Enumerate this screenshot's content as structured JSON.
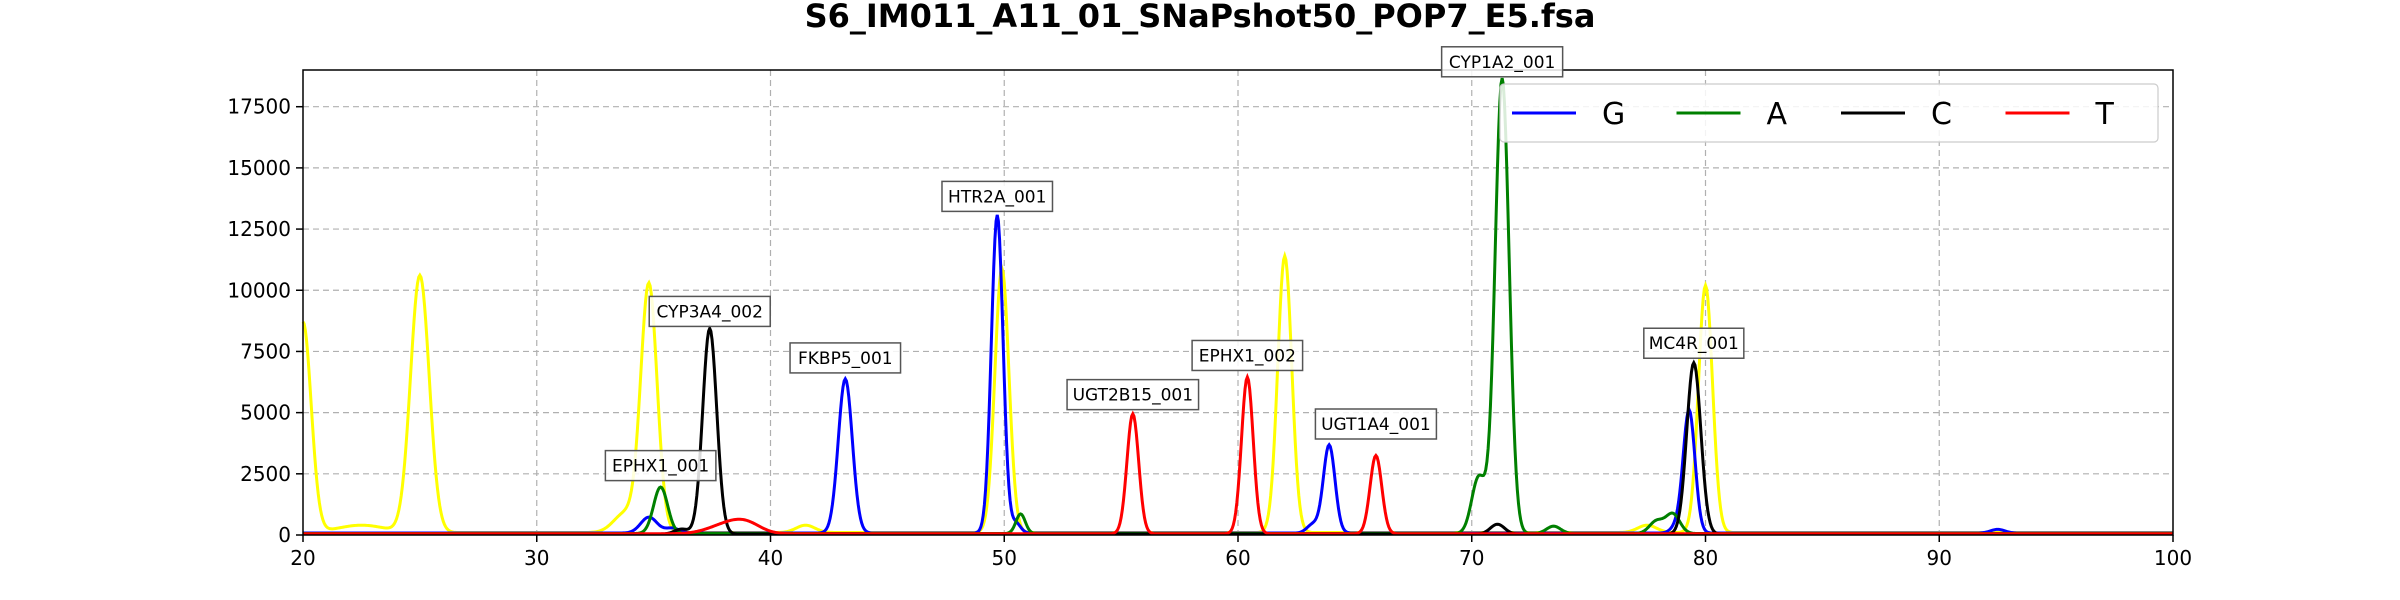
{
  "chart_data": {
    "type": "line",
    "title": "S6_IM011_A11_01_SNaPshot50_POP7_E5.fsa",
    "xlabel": "",
    "ylabel": "",
    "xlim": [
      20,
      100
    ],
    "ylim": [
      0,
      19000
    ],
    "xticks": [
      20,
      30,
      40,
      50,
      60,
      70,
      80,
      90,
      100
    ],
    "yticks": [
      0,
      2500,
      5000,
      7500,
      10000,
      12500,
      15000,
      17500
    ],
    "grid": true,
    "legend_position": "top-right",
    "series": [
      {
        "name": "G",
        "color": "#0000ff",
        "baseline": 80,
        "peaks": [
          [
            34.8,
            650,
            0.35
          ],
          [
            35.8,
            200,
            0.3
          ],
          [
            43.2,
            6300,
            0.3
          ],
          [
            49.7,
            13000,
            0.25
          ],
          [
            50.5,
            400,
            0.2
          ],
          [
            63.2,
            350,
            0.25
          ],
          [
            63.9,
            3600,
            0.25
          ],
          [
            78.8,
            300,
            0.25
          ],
          [
            79.3,
            5000,
            0.25
          ],
          [
            92.5,
            150,
            0.3
          ]
        ]
      },
      {
        "name": "A",
        "color": "#008000",
        "baseline": 60,
        "peaks": [
          [
            35.3,
            1900,
            0.3
          ],
          [
            50.7,
            800,
            0.2
          ],
          [
            70.3,
            2300,
            0.3
          ],
          [
            71.3,
            18600,
            0.3
          ],
          [
            73.5,
            300,
            0.3
          ],
          [
            77.9,
            500,
            0.3
          ],
          [
            78.6,
            800,
            0.3
          ]
        ]
      },
      {
        "name": "C",
        "color": "#000000",
        "baseline": 40,
        "peaks": [
          [
            37.4,
            8400,
            0.3
          ],
          [
            36.2,
            200,
            0.3
          ],
          [
            71.1,
            400,
            0.3
          ],
          [
            79.5,
            7000,
            0.3
          ]
        ]
      },
      {
        "name": "T",
        "color": "#ff0000",
        "baseline": 50,
        "peaks": [
          [
            38.2,
            400,
            0.8
          ],
          [
            39.0,
            300,
            0.6
          ],
          [
            55.5,
            4900,
            0.25
          ],
          [
            60.4,
            6400,
            0.25
          ],
          [
            65.9,
            3200,
            0.25
          ]
        ]
      },
      {
        "name": "",
        "color": "#ffff00",
        "baseline": 100,
        "peaks": [
          [
            20.0,
            8600,
            0.35
          ],
          [
            22.5,
            300,
            1.0
          ],
          [
            25.0,
            10500,
            0.4
          ],
          [
            34.8,
            10100,
            0.35
          ],
          [
            41.5,
            300,
            0.4
          ],
          [
            49.9,
            10800,
            0.3
          ],
          [
            62.0,
            11300,
            0.3
          ],
          [
            80.0,
            10100,
            0.3
          ],
          [
            77.5,
            300,
            0.4
          ],
          [
            33.8,
            800,
            0.5
          ]
        ]
      }
    ],
    "annotations": [
      {
        "label": "EPHX1_001",
        "x": 35.3,
        "y": 2100
      },
      {
        "label": "CYP3A4_002",
        "x": 37.4,
        "y": 8400
      },
      {
        "label": "FKBP5_001",
        "x": 43.2,
        "y": 6500
      },
      {
        "label": "HTR2A_001",
        "x": 49.7,
        "y": 13100
      },
      {
        "label": "UGT2B15_001",
        "x": 55.5,
        "y": 5000
      },
      {
        "label": "EPHX1_002",
        "x": 60.4,
        "y": 6600
      },
      {
        "label": "UGT1A4_001",
        "x": 65.9,
        "y": 3800
      },
      {
        "label": "CYP1A2_001",
        "x": 71.3,
        "y": 18600
      },
      {
        "label": "MC4R_001",
        "x": 79.5,
        "y": 7100
      }
    ]
  }
}
